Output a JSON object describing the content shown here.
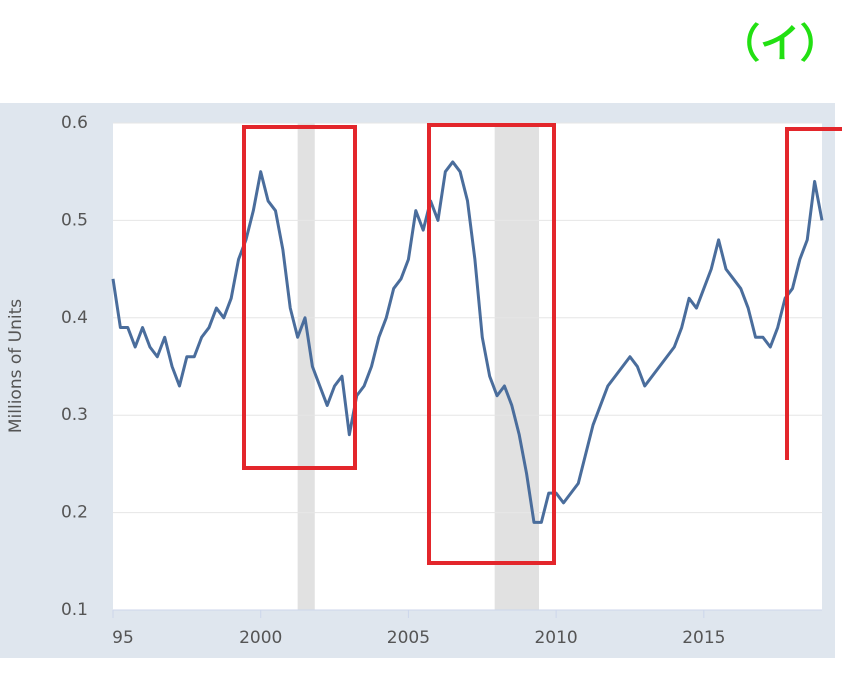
{
  "chart_data": {
    "type": "line",
    "title": "（イ）",
    "y_label": "Millions of Units",
    "xlim": [
      1995,
      2019
    ],
    "xticks": [
      {
        "value": 1995,
        "label": "95"
      },
      2000,
      2005,
      2010,
      2015
    ],
    "ylim": [
      0.1,
      0.6
    ],
    "yticks": [
      0.1,
      0.2,
      0.3,
      0.4,
      0.5,
      0.6
    ],
    "grid": true,
    "recessions": [
      [
        2001.25,
        2001.83
      ],
      [
        2007.92,
        2009.42
      ]
    ],
    "x": [
      1995,
      1995.25,
      1995.5,
      1995.75,
      1996,
      1996.25,
      1996.5,
      1996.75,
      1997,
      1997.25,
      1997.5,
      1997.75,
      1998,
      1998.25,
      1998.5,
      1998.75,
      1999,
      1999.25,
      1999.5,
      1999.75,
      2000,
      2000.25,
      2000.5,
      2000.75,
      2001,
      2001.25,
      2001.5,
      2001.75,
      2002,
      2002.25,
      2002.5,
      2002.75,
      2003,
      2003.25,
      2003.5,
      2003.75,
      2004,
      2004.25,
      2004.5,
      2004.75,
      2005,
      2005.25,
      2005.5,
      2005.75,
      2006,
      2006.25,
      2006.5,
      2006.75,
      2007,
      2007.25,
      2007.5,
      2007.75,
      2008,
      2008.25,
      2008.5,
      2008.75,
      2009,
      2009.25,
      2009.5,
      2009.75,
      2010,
      2010.25,
      2010.5,
      2010.75,
      2011,
      2011.25,
      2011.5,
      2011.75,
      2012,
      2012.25,
      2012.5,
      2012.75,
      2013,
      2013.25,
      2013.5,
      2013.75,
      2014,
      2014.25,
      2014.5,
      2014.75,
      2015,
      2015.25,
      2015.5,
      2015.75,
      2016,
      2016.25,
      2016.5,
      2016.75,
      2017,
      2017.25,
      2017.5,
      2017.75,
      2018,
      2018.25,
      2018.5,
      2018.75,
      2019
    ],
    "series": [
      {
        "color": "#4a6d9c",
        "values": [
          0.44,
          0.39,
          0.39,
          0.37,
          0.39,
          0.37,
          0.36,
          0.38,
          0.35,
          0.33,
          0.36,
          0.36,
          0.38,
          0.39,
          0.41,
          0.4,
          0.42,
          0.46,
          0.48,
          0.51,
          0.55,
          0.52,
          0.51,
          0.47,
          0.41,
          0.38,
          0.4,
          0.35,
          0.33,
          0.31,
          0.33,
          0.34,
          0.28,
          0.32,
          0.33,
          0.35,
          0.38,
          0.4,
          0.43,
          0.44,
          0.46,
          0.51,
          0.49,
          0.52,
          0.5,
          0.55,
          0.56,
          0.55,
          0.52,
          0.46,
          0.38,
          0.34,
          0.32,
          0.33,
          0.31,
          0.28,
          0.24,
          0.19,
          0.19,
          0.22,
          0.22,
          0.21,
          0.22,
          0.23,
          0.26,
          0.29,
          0.31,
          0.33,
          0.34,
          0.35,
          0.36,
          0.35,
          0.33,
          0.34,
          0.35,
          0.36,
          0.37,
          0.39,
          0.42,
          0.41,
          0.43,
          0.45,
          0.48,
          0.45,
          0.44,
          0.43,
          0.41,
          0.38,
          0.38,
          0.37,
          0.39,
          0.42,
          0.43,
          0.46,
          0.48,
          0.54,
          0.5
        ]
      }
    ]
  }
}
